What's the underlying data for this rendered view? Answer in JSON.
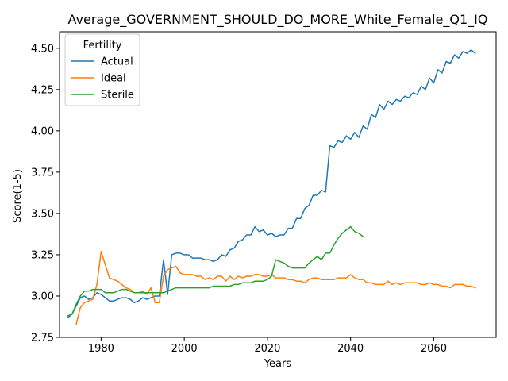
{
  "chart_data": {
    "type": "line",
    "title": "Average_GOVERNMENT_SHOULD_DO_MORE_White_Female_Q1_IQ",
    "xlabel": "Years",
    "ylabel": "Score(1-5)",
    "xlim": [
      1970,
      2075
    ],
    "ylim": [
      2.75,
      4.6
    ],
    "xticks": [
      1980,
      2000,
      2020,
      2040,
      2060
    ],
    "yticks": [
      2.75,
      3.0,
      3.25,
      3.5,
      3.75,
      4.0,
      4.25,
      4.5
    ],
    "ytick_labels": [
      "2.75",
      "3.00",
      "3.25",
      "3.50",
      "3.75",
      "4.00",
      "4.25",
      "4.50"
    ],
    "grid": false,
    "legend": {
      "title": "Fertility",
      "position": "top-left"
    },
    "series": [
      {
        "name": "Actual",
        "color": "#1f77b4",
        "x": [
          1972,
          1973,
          1974,
          1975,
          1976,
          1977,
          1978,
          1979,
          1980,
          1981,
          1982,
          1983,
          1984,
          1985,
          1986,
          1987,
          1988,
          1989,
          1990,
          1991,
          1992,
          1993,
          1994,
          1995,
          1996,
          1997,
          1998,
          1999,
          2000,
          2001,
          2002,
          2003,
          2004,
          2005,
          2006,
          2007,
          2008,
          2009,
          2010,
          2011,
          2012,
          2013,
          2014,
          2015,
          2016,
          2017,
          2018,
          2019,
          2020,
          2021,
          2022,
          2023,
          2024,
          2025,
          2026,
          2027,
          2028,
          2029,
          2030,
          2031,
          2032,
          2033,
          2034,
          2035,
          2036,
          2037,
          2038,
          2039,
          2040,
          2041,
          2042,
          2043,
          2044,
          2045,
          2046,
          2047,
          2048,
          2049,
          2050,
          2051,
          2052,
          2053,
          2054,
          2055,
          2056,
          2057,
          2058,
          2059,
          2060,
          2061,
          2062,
          2063,
          2064,
          2065,
          2066,
          2067,
          2068,
          2069,
          2070
        ],
        "values": [
          2.87,
          2.89,
          2.94,
          2.99,
          3.0,
          2.98,
          2.99,
          3.02,
          3.01,
          2.99,
          2.97,
          2.97,
          2.98,
          2.99,
          2.99,
          2.98,
          2.96,
          2.97,
          2.99,
          2.98,
          2.99,
          3.0,
          3.0,
          3.22,
          3.01,
          3.25,
          3.26,
          3.26,
          3.25,
          3.25,
          3.23,
          3.23,
          3.23,
          3.22,
          3.22,
          3.21,
          3.22,
          3.25,
          3.24,
          3.28,
          3.29,
          3.33,
          3.34,
          3.37,
          3.37,
          3.42,
          3.39,
          3.4,
          3.37,
          3.38,
          3.36,
          3.37,
          3.37,
          3.41,
          3.41,
          3.47,
          3.47,
          3.53,
          3.55,
          3.61,
          3.61,
          3.64,
          3.63,
          3.91,
          3.9,
          3.94,
          3.93,
          3.97,
          3.95,
          3.99,
          3.96,
          4.03,
          4.01,
          4.1,
          4.08,
          4.16,
          4.13,
          4.18,
          4.16,
          4.19,
          4.18,
          4.21,
          4.2,
          4.23,
          4.22,
          4.27,
          4.25,
          4.32,
          4.29,
          4.37,
          4.35,
          4.42,
          4.41,
          4.46,
          4.44,
          4.48,
          4.47,
          4.49,
          4.47
        ]
      },
      {
        "name": "Ideal",
        "color": "#ff7f0e",
        "x": [
          1974,
          1975,
          1976,
          1977,
          1978,
          1979,
          1980,
          1981,
          1982,
          1983,
          1984,
          1985,
          1986,
          1987,
          1988,
          1989,
          1990,
          1991,
          1992,
          1993,
          1994,
          1995,
          1996,
          1997,
          1998,
          1999,
          2000,
          2001,
          2002,
          2003,
          2004,
          2005,
          2006,
          2007,
          2008,
          2009,
          2010,
          2011,
          2012,
          2013,
          2014,
          2015,
          2016,
          2017,
          2018,
          2019,
          2020,
          2021,
          2022,
          2023,
          2024,
          2025,
          2026,
          2027,
          2028,
          2029,
          2030,
          2031,
          2032,
          2033,
          2034,
          2035,
          2036,
          2037,
          2038,
          2039,
          2040,
          2041,
          2042,
          2043,
          2044,
          2045,
          2046,
          2047,
          2048,
          2049,
          2050,
          2051,
          2052,
          2053,
          2054,
          2055,
          2056,
          2057,
          2058,
          2059,
          2060,
          2061,
          2062,
          2063,
          2064,
          2065,
          2066,
          2067,
          2068,
          2069,
          2070
        ],
        "values": [
          2.83,
          2.93,
          2.96,
          2.97,
          2.98,
          3.07,
          3.27,
          3.19,
          3.11,
          3.1,
          3.09,
          3.07,
          3.05,
          3.04,
          3.02,
          3.02,
          3.03,
          3.01,
          3.05,
          2.96,
          2.96,
          3.12,
          3.16,
          3.17,
          3.18,
          3.14,
          3.13,
          3.13,
          3.13,
          3.12,
          3.12,
          3.1,
          3.11,
          3.1,
          3.12,
          3.12,
          3.09,
          3.12,
          3.1,
          3.12,
          3.11,
          3.12,
          3.12,
          3.13,
          3.13,
          3.12,
          3.12,
          3.13,
          3.11,
          3.11,
          3.11,
          3.1,
          3.1,
          3.09,
          3.09,
          3.08,
          3.1,
          3.11,
          3.11,
          3.1,
          3.1,
          3.1,
          3.1,
          3.11,
          3.11,
          3.11,
          3.13,
          3.11,
          3.1,
          3.1,
          3.08,
          3.08,
          3.07,
          3.07,
          3.07,
          3.09,
          3.07,
          3.08,
          3.07,
          3.08,
          3.08,
          3.08,
          3.08,
          3.07,
          3.07,
          3.08,
          3.07,
          3.07,
          3.06,
          3.06,
          3.05,
          3.07,
          3.07,
          3.07,
          3.06,
          3.06,
          3.05
        ]
      },
      {
        "name": "Sterile",
        "color": "#2ca02c",
        "x": [
          1972,
          1973,
          1974,
          1975,
          1976,
          1977,
          1978,
          1979,
          1980,
          1981,
          1982,
          1983,
          1984,
          1985,
          1986,
          1987,
          1988,
          1989,
          1990,
          1991,
          1992,
          1993,
          1994,
          1995,
          1996,
          1997,
          1998,
          1999,
          2000,
          2001,
          2002,
          2003,
          2004,
          2005,
          2006,
          2007,
          2008,
          2009,
          2010,
          2011,
          2012,
          2013,
          2014,
          2015,
          2016,
          2017,
          2018,
          2019,
          2020,
          2021,
          2022,
          2023,
          2024,
          2025,
          2026,
          2027,
          2028,
          2029,
          2030,
          2031,
          2032,
          2033,
          2034,
          2035,
          2036,
          2037,
          2038,
          2039,
          2040,
          2041,
          2042,
          2043
        ],
        "values": [
          2.88,
          2.89,
          2.95,
          3.0,
          3.03,
          3.03,
          3.04,
          3.04,
          3.04,
          3.02,
          3.02,
          3.02,
          3.03,
          3.04,
          3.04,
          3.03,
          3.02,
          3.02,
          3.02,
          3.02,
          3.02,
          3.02,
          3.02,
          3.02,
          3.03,
          3.04,
          3.05,
          3.05,
          3.05,
          3.05,
          3.05,
          3.05,
          3.05,
          3.05,
          3.05,
          3.06,
          3.06,
          3.06,
          3.06,
          3.06,
          3.07,
          3.07,
          3.08,
          3.08,
          3.08,
          3.09,
          3.09,
          3.09,
          3.1,
          3.12,
          3.22,
          3.21,
          3.2,
          3.18,
          3.17,
          3.17,
          3.17,
          3.17,
          3.2,
          3.22,
          3.24,
          3.22,
          3.26,
          3.26,
          3.31,
          3.35,
          3.38,
          3.4,
          3.42,
          3.39,
          3.38,
          3.36
        ]
      }
    ]
  }
}
